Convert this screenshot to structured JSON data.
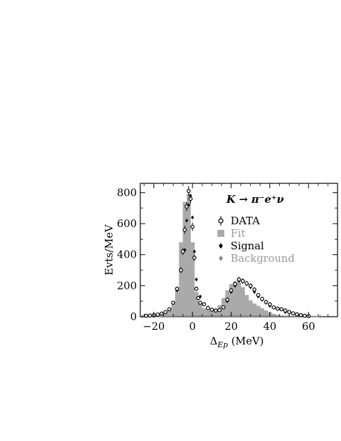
{
  "chart_data": {
    "type": "bar",
    "title": "",
    "xlabel": "ΔEp (MeV)",
    "ylabel": "Evts/MeV",
    "xlim": [
      -27,
      75
    ],
    "ylim": [
      0,
      860
    ],
    "x_ticks": [
      -20,
      0,
      20,
      40,
      60
    ],
    "x_tick_labels": [
      "−20",
      "0",
      "20",
      "40",
      "60"
    ],
    "y_ticks": [
      0,
      200,
      400,
      600,
      800
    ],
    "y_tick_labels": [
      "0",
      "200",
      "400",
      "600",
      "800"
    ],
    "grid": false,
    "legend_position": "right",
    "legend": [
      {
        "label": "DATA",
        "marker": "open-circle-errorbar",
        "color": "#000000"
      },
      {
        "label": "Fit",
        "marker": "filled-square",
        "color": "#aaaaaa"
      },
      {
        "label": "Signal",
        "marker": "diamond",
        "color": "#000000"
      },
      {
        "label": "Background",
        "marker": "diamond",
        "color": "#888888"
      }
    ],
    "annotation": {
      "text": "K → π⁻e⁺ν"
    },
    "bin_width": 2,
    "fit": {
      "x": [
        -26,
        -24,
        -22,
        -20,
        -18,
        -16,
        -14,
        -12,
        -10,
        -8,
        -6,
        -4,
        -2,
        0,
        2,
        4,
        6,
        8,
        10,
        12,
        14,
        16,
        18,
        20,
        22,
        24,
        26,
        28,
        30,
        32,
        34,
        36,
        38,
        40,
        42,
        44,
        46,
        48,
        50,
        52,
        54,
        56,
        58,
        60,
        62,
        64
      ],
      "y": [
        2,
        4,
        6,
        8,
        12,
        18,
        26,
        45,
        85,
        190,
        480,
        740,
        790,
        480,
        160,
        85,
        55,
        42,
        38,
        48,
        75,
        120,
        170,
        210,
        230,
        220,
        190,
        140,
        105,
        85,
        70,
        55,
        40,
        28,
        18,
        12,
        8,
        5,
        3,
        2,
        2,
        1,
        1,
        0,
        0,
        0
      ]
    },
    "data_points": {
      "x": [
        -24,
        -22,
        -20,
        -18,
        -16,
        -14,
        -12,
        -10,
        -8,
        -6,
        -5,
        -4,
        -3,
        -2,
        -1,
        0,
        1,
        2,
        3,
        4,
        6,
        8,
        10,
        12,
        14,
        16,
        18,
        20,
        22,
        24,
        26,
        28,
        30,
        32,
        34,
        36,
        38,
        40,
        42,
        44,
        46,
        48,
        50,
        52,
        54,
        56,
        58,
        60
      ],
      "y": [
        6,
        8,
        10,
        14,
        20,
        30,
        48,
        90,
        180,
        300,
        420,
        560,
        710,
        810,
        760,
        580,
        380,
        180,
        120,
        90,
        80,
        55,
        45,
        40,
        42,
        60,
        110,
        170,
        210,
        240,
        230,
        215,
        200,
        175,
        140,
        115,
        95,
        80,
        60,
        52,
        48,
        40,
        30,
        22,
        15,
        10,
        6,
        4
      ]
    },
    "signal_points": {
      "x": [
        -8,
        -6,
        -4,
        -3,
        -2,
        -1,
        0,
        1,
        2,
        4,
        6,
        8,
        10,
        14,
        18,
        20,
        22,
        24,
        26,
        28,
        30,
        32,
        34,
        36,
        38,
        40,
        44,
        48
      ],
      "y": [
        170,
        300,
        430,
        620,
        720,
        780,
        640,
        420,
        240,
        130,
        80,
        60,
        45,
        45,
        100,
        160,
        200,
        230,
        225,
        210,
        190,
        160,
        130,
        110,
        90,
        70,
        50,
        30
      ]
    },
    "background": {
      "x": [
        -26,
        -20,
        -10,
        0,
        10,
        20,
        30,
        40,
        50,
        60,
        66
      ],
      "y": [
        1,
        2,
        3,
        4,
        5,
        6,
        6,
        5,
        3,
        2,
        1
      ]
    }
  }
}
